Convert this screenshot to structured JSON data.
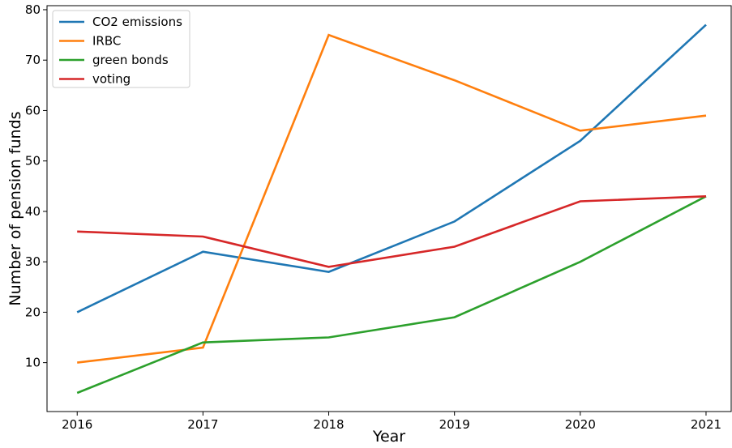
{
  "chart_data": {
    "type": "line",
    "x": [
      2016,
      2017,
      2018,
      2019,
      2020,
      2021
    ],
    "xlabel": "Year",
    "ylabel": "Number of pension funds",
    "xticks": [
      "2016",
      "2017",
      "2018",
      "2019",
      "2020",
      "2021"
    ],
    "yticks": [
      "10",
      "20",
      "30",
      "40",
      "50",
      "60",
      "70",
      "80"
    ],
    "xlim": [
      2015.76,
      2021.2
    ],
    "ylim": [
      0.3,
      80.8
    ],
    "grid": false,
    "legend_position": "top-left",
    "series": [
      {
        "name": "CO2 emissions",
        "color": "#1f77b4",
        "values": [
          20,
          32,
          28,
          38,
          54,
          77
        ]
      },
      {
        "name": "IRBC",
        "color": "#ff7f0e",
        "values": [
          10,
          13,
          75,
          66,
          56,
          59
        ]
      },
      {
        "name": "green bonds",
        "color": "#2ca02c",
        "values": [
          4,
          14,
          15,
          19,
          30,
          43
        ]
      },
      {
        "name": "voting",
        "color": "#d62728",
        "values": [
          36,
          35,
          29,
          33,
          42,
          43
        ]
      }
    ]
  }
}
